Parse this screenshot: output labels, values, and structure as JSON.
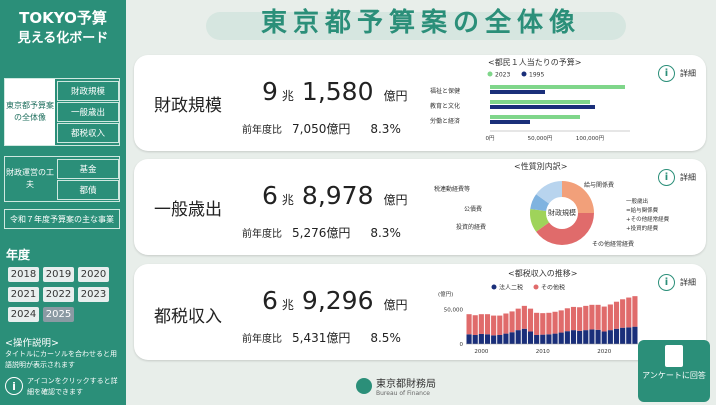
{
  "sidebar": {
    "brand_line1": "TOKYO予算",
    "brand_line2": "見える化ボード",
    "group1_main": "東京都予算案の全体像",
    "group1_subs": [
      "財政規模",
      "一般歳出",
      "都税収入"
    ],
    "group2_main": "財政運営の工夫",
    "group2_subs": [
      "基金",
      "都債"
    ],
    "wide_item": "令和７年度予算案の主な事業",
    "year_title": "年度",
    "years": [
      "2018",
      "2019",
      "2020",
      "2021",
      "2022",
      "2023",
      "2024",
      "2025"
    ],
    "active_year": "2025",
    "help_title": "<操作説明>",
    "help_text": "タイトルにカーソルを合わせると用語説明が表示されます",
    "help_text2": "アイコンをクリックすると詳細を確認できます",
    "info_icon": "i"
  },
  "main": {
    "title": "東京都予算案の全体像",
    "detail_label": "詳細",
    "cards": [
      {
        "label": "財政規模",
        "cho": "9",
        "cho_unit": "兆",
        "oku": "1,580",
        "oku_unit": "億円",
        "yoy_label": "前年度比",
        "yoy_value": "7,050億円",
        "yoy_pct": "8.3%"
      },
      {
        "label": "一般歳出",
        "cho": "6",
        "cho_unit": "兆",
        "oku": "8,978",
        "oku_unit": "億円",
        "yoy_label": "前年度比",
        "yoy_value": "5,276億円",
        "yoy_pct": "8.3%"
      },
      {
        "label": "都税収入",
        "cho": "6",
        "cho_unit": "兆",
        "oku": "9,296",
        "oku_unit": "億円",
        "yoy_label": "前年度比",
        "yoy_value": "5,431億円",
        "yoy_pct": "8.5%"
      }
    ],
    "footer_org": "東京都財務局",
    "footer_org_en": "Bureau of Finance",
    "survey_label": "アンケートに回答"
  },
  "chart_data": [
    {
      "type": "bar",
      "title": "<都民１人当たりの予算>",
      "orientation": "horizontal",
      "categories": [
        "福祉と保健",
        "教育と文化",
        "労働と経済"
      ],
      "series": [
        {
          "name": "2023",
          "color": "#7fd68a",
          "values": [
            135000,
            100000,
            90000
          ]
        },
        {
          "name": "1995",
          "color": "#1a2f7a",
          "values": [
            55000,
            105000,
            40000
          ]
        }
      ],
      "tick_labels": [
        "0円",
        "50,000円",
        "100,000円"
      ],
      "xlim": [
        0,
        140000
      ]
    },
    {
      "type": "pie",
      "title": "<性質別内訳>",
      "center_label": "財政規模",
      "slices": [
        {
          "label": "給与関係費",
          "value": 25,
          "color": "#f2a07a"
        },
        {
          "label": "その他経常経費",
          "value": 40,
          "color": "#e06b6b"
        },
        {
          "label": "投資的経費",
          "value": 12,
          "color": "#9fd35a"
        },
        {
          "label": "公債費",
          "value": 8,
          "color": "#7fb3e0"
        },
        {
          "label": "税連動経費等",
          "value": 15,
          "color": "#b8d4ee"
        }
      ],
      "legend": [
        "一般歳出",
        "=給与関係費",
        "+その他経常経費",
        "+投資的経費"
      ]
    },
    {
      "type": "bar",
      "title": "<都税収入の推移>",
      "ylabel": "(億円)",
      "stacked": true,
      "x": [
        1998,
        1999,
        2000,
        2001,
        2002,
        2003,
        2004,
        2005,
        2006,
        2007,
        2008,
        2009,
        2010,
        2011,
        2012,
        2013,
        2014,
        2015,
        2016,
        2017,
        2018,
        2019,
        2020,
        2021,
        2022,
        2023,
        2024,
        2025
      ],
      "series": [
        {
          "name": "法人二税",
          "color": "#1a2f7a",
          "values": [
            14000,
            13000,
            14500,
            14000,
            12500,
            13000,
            15000,
            17000,
            20000,
            22000,
            18000,
            13000,
            13500,
            14000,
            15000,
            16500,
            18500,
            20000,
            19000,
            20000,
            21000,
            20500,
            18000,
            20000,
            22000,
            23500,
            24000,
            25000
          ]
        },
        {
          "name": "その他税",
          "color": "#e06b6b",
          "values": [
            29000,
            28500,
            28500,
            29000,
            28500,
            28000,
            29000,
            30000,
            31000,
            33000,
            33000,
            32000,
            31000,
            31000,
            31500,
            32000,
            33000,
            33500,
            34000,
            35000,
            35500,
            36000,
            36000,
            37000,
            39000,
            41000,
            43000,
            44000
          ]
        }
      ],
      "tick_labels_x": [
        "2000",
        "2010",
        "2020"
      ],
      "tick_labels_y": [
        "0",
        "50,000"
      ],
      "ylim": [
        0,
        75000
      ]
    }
  ]
}
